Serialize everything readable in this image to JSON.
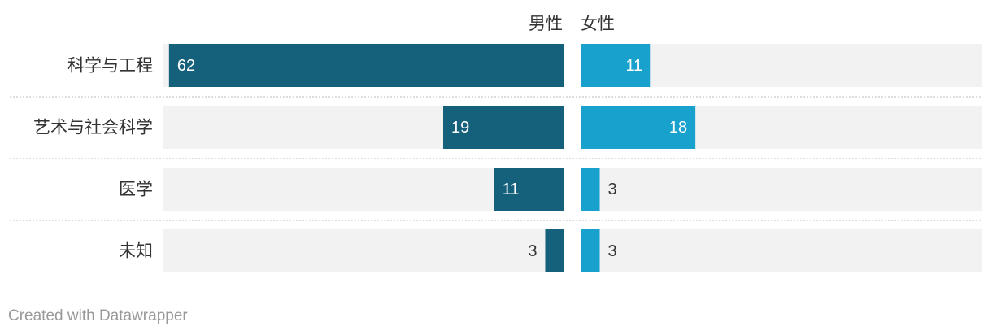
{
  "chart_data": {
    "type": "butterfly",
    "categories": [
      "科学与工程",
      "艺术与社会科学",
      "医学",
      "未知"
    ],
    "series": [
      {
        "name": "男性",
        "color": "#15607a",
        "values": [
          62,
          19,
          11,
          3
        ]
      },
      {
        "name": "女性",
        "color": "#18a1cd",
        "values": [
          11,
          18,
          3,
          3
        ]
      }
    ],
    "xlim": [
      0,
      63
    ],
    "credit": "Created with Datawrapper"
  }
}
